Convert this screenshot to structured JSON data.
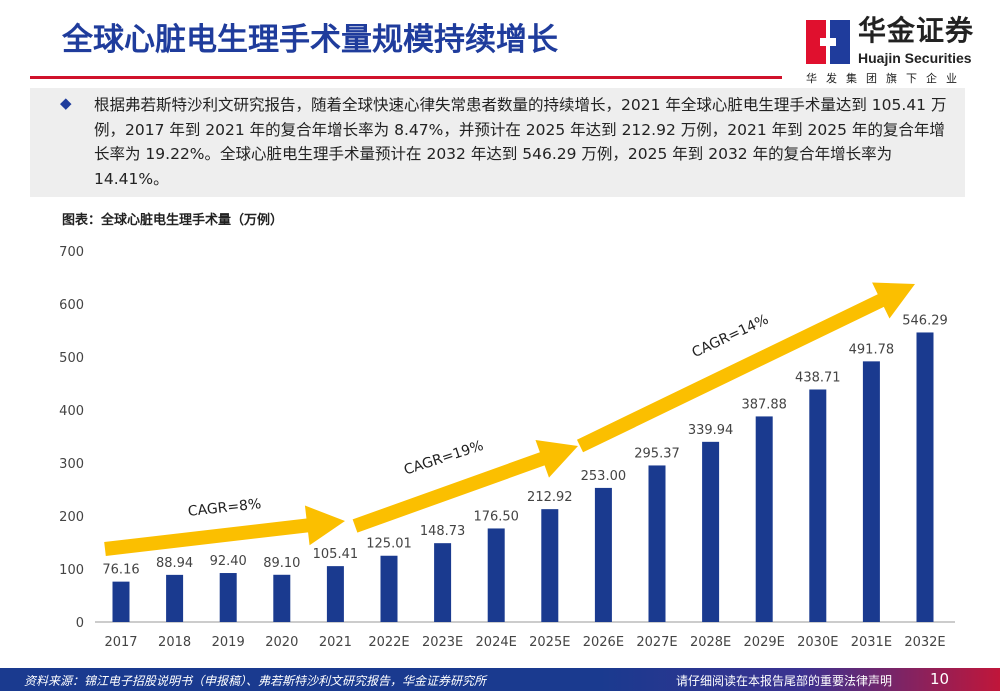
{
  "header": {
    "title": "全球心脏电生理手术量规模持续增长"
  },
  "logo": {
    "cn": "华金证券",
    "en": "Huajin Securities",
    "sub": "华发集团旗下企业",
    "colors": {
      "red": "#e0102e",
      "blue": "#1f3c9c"
    }
  },
  "summary": {
    "bullet": "◆",
    "text": "根据弗若斯特沙利文研究报告，随着全球快速心律失常患者数量的持续增长，2021 年全球心脏电生理手术量达到 105.41 万例，2017 年到 2021 年的复合年增长率为 8.47%，并预计在 2025 年达到 212.92 万例，2021 年到 2025 年的复合年增长率为 19.22%。全球心脏电生理手术量预计在 2032 年达到 546.29 万例，2025 年到 2032 年的复合年增长率为 14.41%。"
  },
  "chart_data": {
    "type": "bar",
    "title": "图表：全球心脏电生理手术量（万例）",
    "categories": [
      "2017",
      "2018",
      "2019",
      "2020",
      "2021",
      "2022E",
      "2023E",
      "2024E",
      "2025E",
      "2026E",
      "2027E",
      "2028E",
      "2029E",
      "2030E",
      "2031E",
      "2032E"
    ],
    "values": [
      76.16,
      88.94,
      92.4,
      89.1,
      105.41,
      125.01,
      148.73,
      176.5,
      212.92,
      253.0,
      295.37,
      339.94,
      387.88,
      438.71,
      491.78,
      546.29
    ],
    "value_labels": [
      "76.16",
      "88.94",
      "92.40",
      "89.10",
      "105.41",
      "125.01",
      "148.73",
      "176.50",
      "212.92",
      "253.00",
      "295.37",
      "339.94",
      "387.88",
      "438.71",
      "491.78",
      "546.29"
    ],
    "ylim": [
      0,
      700
    ],
    "yticks": [
      0,
      100,
      200,
      300,
      400,
      500,
      600,
      700
    ],
    "bar_color": "#1a3a8f",
    "arrow_color": "#fbbf00",
    "annotations": [
      {
        "text": "CAGR=8%",
        "from": "2017",
        "to": "2021"
      },
      {
        "text": "CAGR=19%",
        "from": "2021",
        "to": "2025E"
      },
      {
        "text": "CAGR=14%",
        "from": "2025E",
        "to": "2032E"
      }
    ]
  },
  "footer": {
    "source": "资料来源：锦江电子招股说明书（申报稿）、弗若斯特沙利文研究报告，华金证券研究所",
    "legal": "请仔细阅读在本报告尾部的重要法律声明",
    "page": "10"
  }
}
